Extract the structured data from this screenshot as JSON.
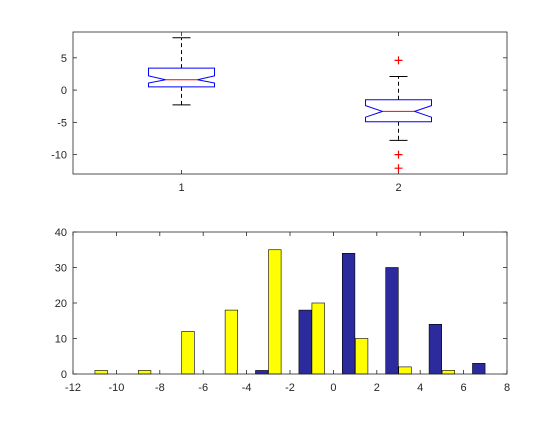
{
  "colors": {
    "axis": "#262626",
    "box_edge": "#0000ff",
    "median": "#ff0000",
    "whisker": "#000000",
    "outlier": "#ff0000",
    "series1": "#2b2b9e",
    "series2": "#ffff00"
  },
  "chart_data": [
    {
      "type": "boxplot",
      "notched": true,
      "xlabel": "",
      "ylabel": "",
      "ylim": [
        -13,
        9
      ],
      "yticks": [
        -10,
        -5,
        0,
        5
      ],
      "ytick_labels": [
        "-10",
        "-5",
        "0",
        "5"
      ],
      "categories": [
        "1",
        "2"
      ],
      "boxes": [
        {
          "label": "1",
          "whisker_low": -2.3,
          "q1": 0.5,
          "notch_low": 1.1,
          "median": 1.6,
          "notch_high": 2.2,
          "q3": 3.4,
          "whisker_high": 8.1,
          "outliers": []
        },
        {
          "label": "2",
          "whisker_low": -7.8,
          "q1": -4.9,
          "notch_low": -4.2,
          "median": -3.3,
          "notch_high": -2.4,
          "q3": -1.5,
          "whisker_high": 2.1,
          "outliers": [
            4.6,
            -10.0,
            -12.1
          ]
        }
      ]
    },
    {
      "type": "bar",
      "grouped": true,
      "xlabel": "",
      "ylabel": "",
      "xlim": [
        -12,
        8
      ],
      "ylim": [
        0,
        40
      ],
      "xticks": [
        -12,
        -10,
        -8,
        -6,
        -4,
        -2,
        0,
        2,
        4,
        6,
        8
      ],
      "xtick_labels": [
        "-12",
        "-10",
        "-8",
        "-6",
        "-4",
        "-2",
        "0",
        "2",
        "4",
        "6",
        "8"
      ],
      "yticks": [
        0,
        10,
        20,
        30,
        40
      ],
      "ytick_labels": [
        "0",
        "10",
        "20",
        "30",
        "40"
      ],
      "x": [
        -11,
        -9,
        -7,
        -5,
        -3,
        -1,
        1,
        3,
        5,
        7
      ],
      "series": [
        {
          "values": [
            0,
            0,
            0,
            0,
            1,
            18,
            34,
            30,
            14,
            3
          ]
        },
        {
          "values": [
            1,
            1,
            12,
            18,
            35,
            20,
            10,
            2,
            1,
            0
          ]
        }
      ]
    }
  ]
}
